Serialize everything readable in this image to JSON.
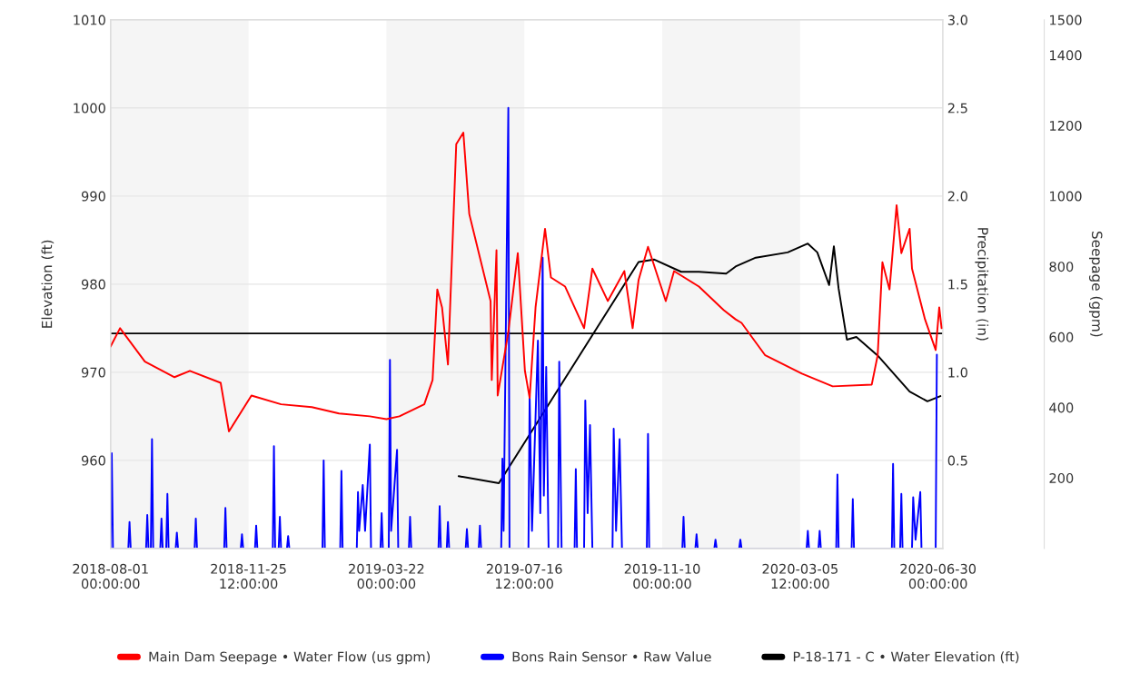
{
  "chart_data": {
    "type": "line",
    "ylabel": "Elevation (ft)",
    "y2label": "Precipitation (in)",
    "y3label": "Seepage (gpm)",
    "xlim": [
      "2018-08-01",
      "2020-07-04"
    ],
    "xticks": [
      {
        "value": "2018-08-01",
        "label": "2018-08-01\n00:00:00"
      },
      {
        "value": "2018-11-25T12:00",
        "label": "2018-11-25\n12:00:00"
      },
      {
        "value": "2019-03-22",
        "label": "2019-03-22\n00:00:00"
      },
      {
        "value": "2019-07-16T12:00",
        "label": "2019-07-16\n12:00:00"
      },
      {
        "value": "2019-11-10",
        "label": "2019-11-10\n00:00:00"
      },
      {
        "value": "2020-03-05T12:00",
        "label": "2020-03-05\n12:00:00"
      },
      {
        "value": "2020-06-30",
        "label": "2020-06-30\n00:00:00"
      }
    ],
    "ylim": [
      950,
      1010
    ],
    "yticks": [
      960,
      970,
      980,
      990,
      1000,
      1010
    ],
    "y2lim": [
      0,
      3
    ],
    "y2ticks": [
      0.5,
      {
        "value": 1,
        "label": "1.0"
      },
      1.5,
      {
        "value": 2,
        "label": "2.0"
      },
      2.5,
      {
        "value": 3,
        "label": "3.0"
      }
    ],
    "y3lim": [
      0,
      1500
    ],
    "y3ticks": [
      200,
      400,
      600,
      800,
      1000,
      1200,
      1400,
      1500
    ],
    "grid": "y",
    "legend": "bottom",
    "bands": [
      {
        "axis": "x",
        "from": "2018-08-01",
        "to": "2018-11-25T12:00",
        "color": "#f5f5f5"
      },
      {
        "axis": "x",
        "from": "2019-03-22",
        "to": "2019-07-16T12:00",
        "color": "#f5f5f5"
      },
      {
        "axis": "x",
        "from": "2019-11-10",
        "to": "2020-03-05T12:00",
        "color": "#f5f5f5"
      }
    ],
    "ref_lines": [
      {
        "axis": "y",
        "value": 974.4,
        "color": "#000000"
      }
    ],
    "series": [
      {
        "name": "Main Dam Seepage • Water Flow (us gpm)",
        "color": "#ff0000",
        "axis": "y3",
        "x": [
          "2018-08-01",
          "2018-08-09",
          "2018-08-30",
          "2018-09-24",
          "2018-10-07",
          "2018-11-02",
          "2018-11-09",
          "2018-11-28",
          "2018-12-23",
          "2019-01-18",
          "2019-02-10",
          "2019-03-08",
          "2019-03-22",
          "2019-04-02",
          "2019-04-23",
          "2019-04-30",
          "2019-05-04",
          "2019-05-08",
          "2019-05-13",
          "2019-05-20",
          "2019-05-26",
          "2019-05-31",
          "2019-06-18",
          "2019-06-19",
          "2019-06-23",
          "2019-06-24",
          "2019-07-03",
          "2019-07-11",
          "2019-07-17",
          "2019-07-21",
          "2019-07-26",
          "2019-08-03",
          "2019-08-08",
          "2019-08-20",
          "2019-09-05",
          "2019-09-12",
          "2019-09-25",
          "2019-10-09",
          "2019-10-16",
          "2019-10-21",
          "2019-10-29",
          "2019-11-13",
          "2019-11-20",
          "2019-12-11",
          "2020-01-01",
          "2020-01-11",
          "2020-01-16",
          "2020-02-05",
          "2020-03-07",
          "2020-04-02",
          "2020-05-05",
          "2020-05-10",
          "2020-05-14",
          "2020-05-20",
          "2020-05-26",
          "2020-05-30",
          "2020-06-06",
          "2020-06-08",
          "2020-06-19",
          "2020-06-28",
          "2020-07-01",
          "2020-07-03"
        ],
        "values": [
          573,
          625,
          530,
          486,
          504,
          470,
          332,
          434,
          409,
          401,
          383,
          375,
          367,
          375,
          409,
          478,
          735,
          684,
          522,
          1147,
          1180,
          949,
          702,
          478,
          846,
          434,
          614,
          838,
          504,
          427,
          684,
          907,
          769,
          743,
          625,
          794,
          702,
          787,
          625,
          761,
          856,
          702,
          787,
          743,
          676,
          650,
          640,
          548,
          496,
          460,
          465,
          548,
          812,
          735,
          974,
          838,
          907,
          794,
          650,
          563,
          684,
          625
        ]
      },
      {
        "name": "Bons Rain Sensor • Raw Value",
        "color": "#0000ff",
        "axis": "y2",
        "x": [
          "2018-08-01",
          "2018-08-02",
          "2018-08-03",
          "2018-08-16",
          "2018-08-17",
          "2018-08-18",
          "2018-08-31",
          "2018-09-01",
          "2018-09-02",
          "2018-09-04",
          "2018-09-05",
          "2018-09-06",
          "2018-09-12",
          "2018-09-13",
          "2018-09-14",
          "2018-09-17",
          "2018-09-18",
          "2018-09-19",
          "2018-09-25",
          "2018-09-26",
          "2018-09-27",
          "2018-10-11",
          "2018-10-12",
          "2018-10-13",
          "2018-11-05",
          "2018-11-06",
          "2018-11-07",
          "2018-11-19",
          "2018-11-20",
          "2018-11-21",
          "2018-12-01",
          "2018-12-02",
          "2018-12-03",
          "2018-12-16",
          "2018-12-17",
          "2018-12-18",
          "2018-12-21",
          "2018-12-22",
          "2018-12-23",
          "2018-12-28",
          "2018-12-29",
          "2018-12-30",
          "2019-01-27",
          "2019-01-28",
          "2019-01-29",
          "2019-02-11",
          "2019-02-12",
          "2019-02-13",
          "2019-02-25",
          "2019-02-26",
          "2019-02-27",
          "2019-03-02",
          "2019-03-04",
          "2019-03-08",
          "2019-03-09",
          "2019-03-17",
          "2019-03-18",
          "2019-03-19",
          "2019-03-24",
          "2019-03-25",
          "2019-03-26",
          "2019-03-31",
          "2019-04-01",
          "2019-04-10",
          "2019-04-11",
          "2019-04-12",
          "2019-05-05",
          "2019-05-06",
          "2019-05-07",
          "2019-05-12",
          "2019-05-13",
          "2019-05-14",
          "2019-05-28",
          "2019-05-29",
          "2019-05-30",
          "2019-06-08",
          "2019-06-09",
          "2019-06-10",
          "2019-06-27",
          "2019-06-28",
          "2019-06-29",
          "2019-07-03",
          "2019-07-04",
          "2019-07-20",
          "2019-07-21",
          "2019-07-23",
          "2019-07-28",
          "2019-07-30",
          "2019-08-01",
          "2019-08-02",
          "2019-08-04",
          "2019-08-06",
          "2019-08-14",
          "2019-08-15",
          "2019-08-17",
          "2019-08-28",
          "2019-08-29",
          "2019-08-30",
          "2019-09-05",
          "2019-09-06",
          "2019-09-08",
          "2019-09-10",
          "2019-09-12",
          "2019-09-29",
          "2019-09-30",
          "2019-10-02",
          "2019-10-05",
          "2019-10-07",
          "2019-10-28",
          "2019-10-29",
          "2019-10-30",
          "2019-11-27",
          "2019-11-28",
          "2019-11-29",
          "2019-12-08",
          "2019-12-09",
          "2019-12-10",
          "2019-12-24",
          "2019-12-25",
          "2019-12-26",
          "2020-01-14",
          "2020-01-15",
          "2020-01-16",
          "2020-03-11",
          "2020-03-12",
          "2020-03-13",
          "2020-03-21",
          "2020-03-22",
          "2020-03-23",
          "2020-04-05",
          "2020-04-06",
          "2020-04-07",
          "2020-04-18",
          "2020-04-19",
          "2020-04-20",
          "2020-05-22",
          "2020-05-23",
          "2020-05-24",
          "2020-05-29",
          "2020-05-30",
          "2020-05-31",
          "2020-06-08",
          "2020-06-09",
          "2020-06-11",
          "2020-06-15",
          "2020-06-16",
          "2020-06-28",
          "2020-06-29"
        ],
        "values": [
          0,
          0.54,
          0,
          0,
          0.15,
          0,
          0,
          0.19,
          0,
          0,
          0.62,
          0,
          0,
          0.17,
          0,
          0,
          0.31,
          0,
          0,
          0.09,
          0,
          0,
          0.17,
          0,
          0,
          0.23,
          0,
          0,
          0.08,
          0,
          0,
          0.13,
          0,
          0,
          0.58,
          0,
          0,
          0.18,
          0,
          0,
          0.07,
          0,
          0,
          0.5,
          0,
          0,
          0.44,
          0,
          0,
          0.32,
          0.1,
          0.36,
          0.1,
          0.59,
          0,
          0,
          0.2,
          0,
          0,
          1.07,
          0.1,
          0.56,
          0,
          0,
          0.18,
          0,
          0,
          0.24,
          0,
          0,
          0.15,
          0,
          0,
          0.11,
          0,
          0,
          0.13,
          0,
          0,
          0.51,
          0.1,
          2.5,
          0,
          0,
          0.87,
          0.1,
          1.18,
          0.2,
          1.65,
          0.3,
          1.03,
          0,
          0,
          1.06,
          0,
          0,
          0.45,
          0,
          0,
          0.84,
          0.2,
          0.7,
          0,
          0,
          0.68,
          0.1,
          0.62,
          0,
          0,
          0.65,
          0,
          0,
          0.18,
          0,
          0,
          0.08,
          0,
          0,
          0.05,
          0,
          0,
          0.05,
          0,
          0,
          0.1,
          0,
          0,
          0.1,
          0,
          0,
          0.42,
          0,
          0,
          0.28,
          0,
          0,
          0.48,
          0,
          0,
          0.31,
          0,
          0,
          0.29,
          0.05,
          0.32,
          0,
          0,
          1.1
        ]
      },
      {
        "name": "P-18-171 - C • Water Elevation (ft)",
        "color": "#000000",
        "x": [
          "2019-05-22",
          "2019-06-25",
          "2019-10-21",
          "2019-11-03",
          "2019-11-26",
          "2019-12-11",
          "2020-01-03",
          "2020-01-11",
          "2020-01-28",
          "2020-02-24",
          "2020-03-12",
          "2020-03-20",
          "2020-03-30",
          "2020-04-03",
          "2020-04-07",
          "2020-04-14",
          "2020-04-22",
          "2020-05-10",
          "2020-06-06",
          "2020-06-21",
          "2020-07-02"
        ],
        "values": [
          958.2,
          957.4,
          982.5,
          982.8,
          981.4,
          981.4,
          981.2,
          982,
          983,
          983.6,
          984.6,
          983.6,
          979.9,
          984.3,
          979.5,
          973.7,
          974,
          971.9,
          967.8,
          966.7,
          967.3
        ]
      }
    ]
  }
}
